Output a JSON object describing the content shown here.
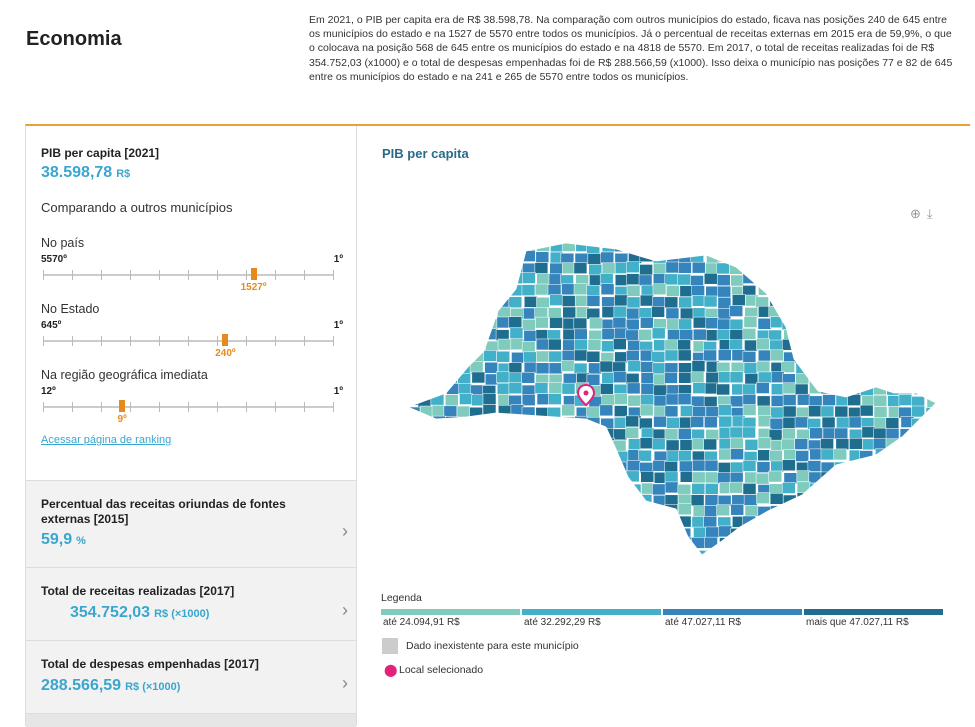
{
  "page": {
    "title": "Economia",
    "intro": "Em 2021, o PIB per capita era de R$ 38.598,78. Na comparação com outros municípios do estado, ficava nas posições 240 de 645 entre os municípios do estado e na 1527 de 5570 entre todos os municípios. Já o percentual de receitas externas em 2015 era de 59,9%, o que o colocava na posição 568 de 645 entre os municípios do estado e na 4818 de 5570. Em 2017, o total de receitas realizadas foi de R$ 354.752,03 (x1000) e o total de despesas empenhadas foi de R$ 288.566,59 (x1000). Isso deixa o município nas posições 77 e 82 de 645 entre os municípios do estado e na 241 e 265 de 5570 entre todos os municípios."
  },
  "pib": {
    "label": "PIB per capita [2021]",
    "value": "38.598,78",
    "unit": "R$",
    "compare_title": "Comparando a outros municípios",
    "scales": [
      {
        "scope": "No país",
        "min_label": "5570º",
        "max_label": "1º",
        "rank_label": "1527º",
        "position": 0.726
      },
      {
        "scope": "No Estado",
        "min_label": "645º",
        "max_label": "1º",
        "rank_label": "240º",
        "position": 0.629
      },
      {
        "scope": "Na região geográfica imediata",
        "min_label": "12º",
        "max_label": "1º",
        "rank_label": "9º",
        "position": 0.273
      }
    ],
    "ranking_link": "Acessar página de ranking"
  },
  "indicators": [
    {
      "label": "Percentual das receitas oriundas de fontes externas [2015]",
      "value": "59,9",
      "unit": "%"
    },
    {
      "label": "Total de receitas realizadas [2017]",
      "value": "354.752,03",
      "unit": "R$ (×1000)"
    },
    {
      "label": "Total de despesas empenhadas [2017]",
      "value": "288.566,59",
      "unit": "R$ (×1000)"
    }
  ],
  "map": {
    "title": "PIB per capita",
    "legend_title": "Legenda",
    "legend": [
      {
        "label": "até 24.094,91 R$",
        "color": "#7fcbbd"
      },
      {
        "label": "até 32.292,29 R$",
        "color": "#42b0c8"
      },
      {
        "label": "até 47.027,11 R$",
        "color": "#3584bc"
      },
      {
        "label": "mais que 47.027,11 R$",
        "color": "#1f6e8f"
      }
    ],
    "no_data": "Dado inexistente para este município",
    "selected": "Local selecionado",
    "icons": [
      "zoom-icon",
      "download-icon",
      "map-pin-icon",
      "chevron-right-icon"
    ]
  }
}
